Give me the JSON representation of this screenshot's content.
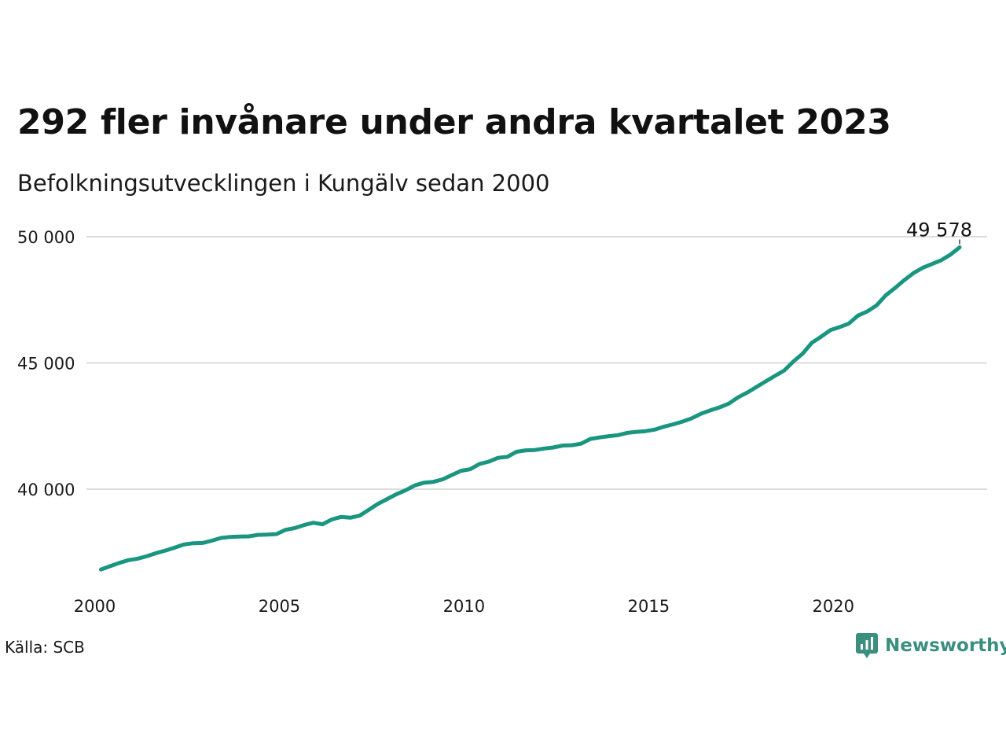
{
  "header": {
    "title": "292 fler invånare under andra kvartalet 2023",
    "subtitle": "Befolkningsutvecklingen i Kungälv sedan 2000"
  },
  "footer": {
    "source": "Källa: SCB",
    "brand": "Newsworthy",
    "brand_icon": "newsworthy-logo-icon"
  },
  "colors": {
    "line": "#1a9580",
    "grid": "#dcdcdc",
    "brand": "#3b8f7f"
  },
  "chart_data": {
    "type": "line",
    "title": "292 fler invånare under andra kvartalet 2023",
    "subtitle": "Befolkningsutvecklingen i Kungälv sedan 2000",
    "xlabel": "",
    "ylabel": "",
    "grid": "horizontal",
    "legend": "none",
    "xlim": [
      2000,
      2023.5
    ],
    "ylim": [
      36500,
      50500
    ],
    "x_ticks": [
      2000,
      2005,
      2010,
      2015,
      2020
    ],
    "x_tick_labels": [
      "2000",
      "2005",
      "2010",
      "2015",
      "2020"
    ],
    "y_ticks": [
      40000,
      45000,
      50000
    ],
    "y_tick_labels": [
      "40 000",
      "45 000",
      "50 000"
    ],
    "end_label": "49 578",
    "series": [
      {
        "x": [
          2000.0,
          2000.25,
          2000.5,
          2000.75,
          2001.0,
          2001.25,
          2001.5,
          2001.75,
          2002.0,
          2002.25,
          2002.5,
          2002.75,
          2003.0,
          2003.25,
          2003.5,
          2003.75,
          2004.0,
          2004.25,
          2004.5,
          2004.75,
          2005.0,
          2005.25,
          2005.5,
          2005.75,
          2006.0,
          2006.25,
          2006.5,
          2006.75,
          2007.0,
          2007.25,
          2007.5,
          2007.75,
          2008.0,
          2008.25,
          2008.5,
          2008.75,
          2009.0,
          2009.25,
          2009.5,
          2009.75,
          2010.0,
          2010.25,
          2010.5,
          2010.75,
          2011.0,
          2011.25,
          2011.5,
          2011.75,
          2012.0,
          2012.25,
          2012.5,
          2012.75,
          2013.0,
          2013.25,
          2013.5,
          2013.75,
          2014.0,
          2014.25,
          2014.5,
          2014.75,
          2015.0,
          2015.25,
          2015.5,
          2015.75,
          2016.0,
          2016.25,
          2016.5,
          2016.75,
          2017.0,
          2017.25,
          2017.5,
          2017.75,
          2018.0,
          2018.25,
          2018.5,
          2018.75,
          2019.0,
          2019.25,
          2019.5,
          2019.75,
          2020.0,
          2020.25,
          2020.5,
          2020.75,
          2021.0,
          2021.25,
          2021.5,
          2021.75,
          2022.0,
          2022.25,
          2022.5,
          2022.75,
          2023.0,
          2023.25
        ],
        "values": [
          36820,
          36950,
          37080,
          37190,
          37250,
          37350,
          37470,
          37570,
          37690,
          37810,
          37860,
          37870,
          37960,
          38070,
          38110,
          38120,
          38130,
          38190,
          38200,
          38220,
          38390,
          38460,
          38580,
          38670,
          38610,
          38800,
          38900,
          38870,
          38950,
          39180,
          39420,
          39610,
          39800,
          39960,
          40150,
          40260,
          40290,
          40390,
          40560,
          40730,
          40790,
          41000,
          41090,
          41240,
          41280,
          41480,
          41540,
          41550,
          41610,
          41650,
          41730,
          41740,
          41800,
          41990,
          42050,
          42100,
          42140,
          42230,
          42270,
          42300,
          42360,
          42480,
          42570,
          42680,
          42810,
          42990,
          43120,
          43240,
          43390,
          43640,
          43830,
          44050,
          44270,
          44490,
          44700,
          45060,
          45370,
          45800,
          46040,
          46300,
          46420,
          46560,
          46880,
          47040,
          47280,
          47680,
          47970,
          48280,
          48560,
          48770,
          48920,
          49070,
          49290,
          49578
        ]
      }
    ]
  }
}
